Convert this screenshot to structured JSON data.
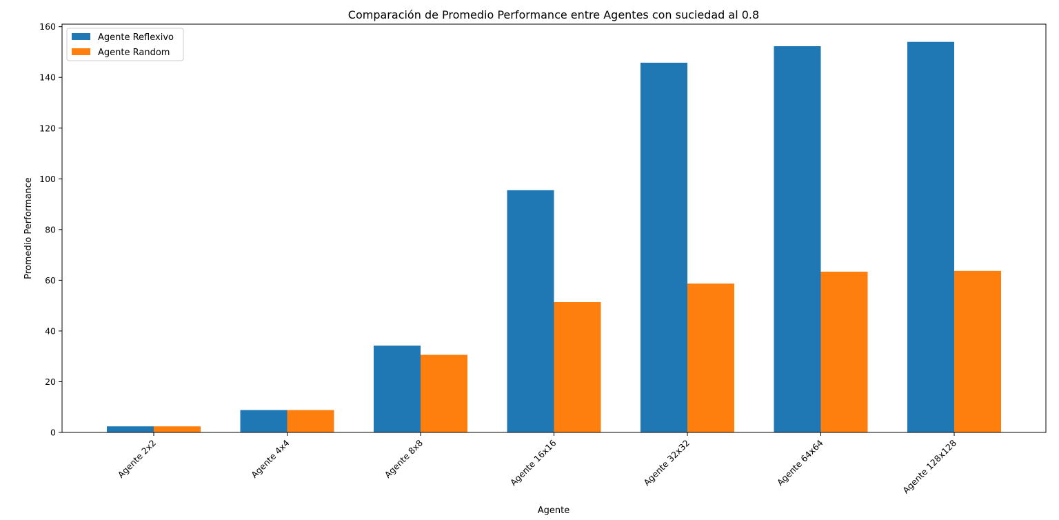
{
  "chart_data": {
    "type": "bar",
    "title": "Comparación de Promedio Performance entre Agentes con suciedad al 0.8",
    "xlabel": "Agente",
    "ylabel": "Promedio Performance",
    "categories": [
      "Agente 2x2",
      "Agente 4x4",
      "Agente 8x8",
      "Agente 16x16",
      "Agente 32x32",
      "Agente 64x64",
      "Agente 128x128"
    ],
    "series": [
      {
        "name": "Agente Reflexivo",
        "color": "#1f77b4",
        "values": [
          2.4,
          8.8,
          34.2,
          95.5,
          145.8,
          152.3,
          154.0
        ]
      },
      {
        "name": "Agente Random",
        "color": "#ff7f0e",
        "values": [
          2.4,
          8.8,
          30.6,
          51.4,
          58.7,
          63.4,
          63.7
        ]
      }
    ],
    "ylim": [
      0,
      161
    ],
    "yticks": [
      0,
      20,
      40,
      60,
      80,
      100,
      120,
      140,
      160
    ],
    "legend_position": "top-left",
    "grid": false
  }
}
